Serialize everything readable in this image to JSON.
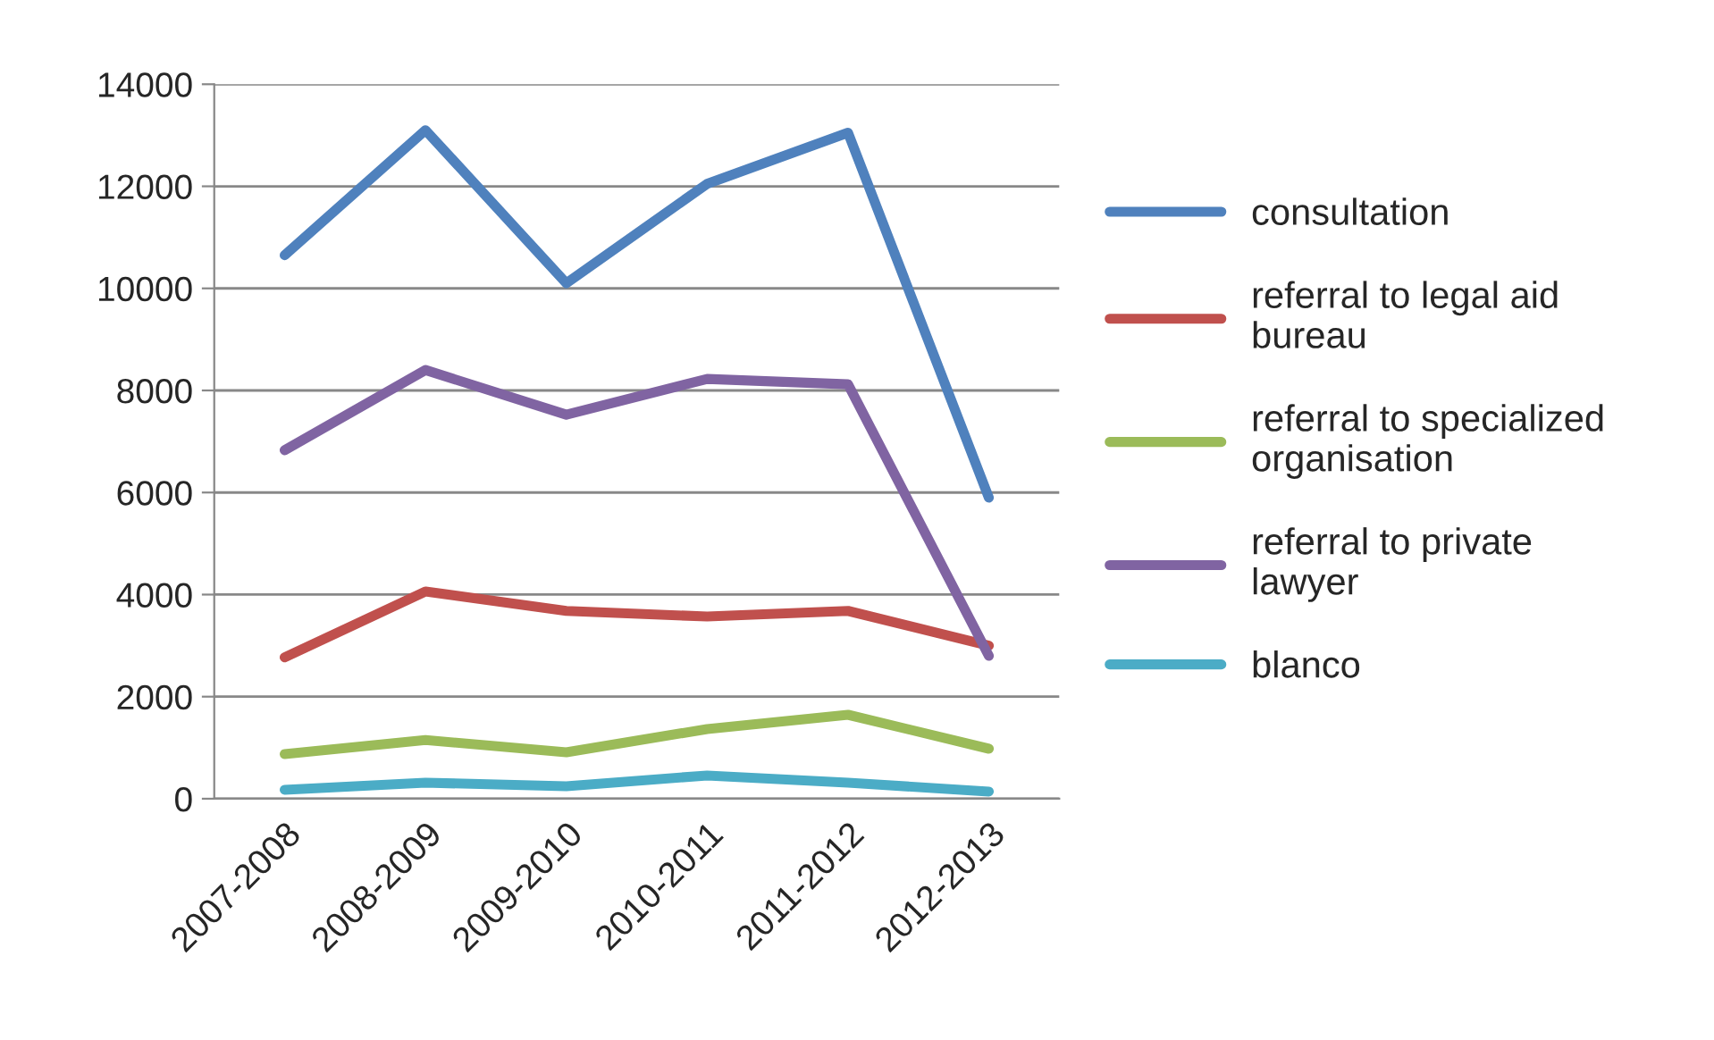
{
  "chart_data": {
    "type": "line",
    "categories": [
      "2007-2008",
      "2008-2009",
      "2009-2010",
      "2010-2011",
      "2011-2012",
      "2012-2013"
    ],
    "series": [
      {
        "name": "consultation",
        "color": "#4f81bd",
        "values": [
          10650,
          13100,
          10100,
          12050,
          13050,
          5900
        ]
      },
      {
        "name": "referral to legal aid\nbureau",
        "color": "#c0504d",
        "values": [
          2770,
          4060,
          3680,
          3570,
          3680,
          3000
        ]
      },
      {
        "name": "referral to specialized\norganisation",
        "color": "#9bbb59",
        "values": [
          875,
          1150,
          910,
          1365,
          1645,
          980
        ]
      },
      {
        "name": "referral to private\nlawyer",
        "color": "#8064a2",
        "values": [
          6830,
          8400,
          7525,
          8225,
          8120,
          2800
        ]
      },
      {
        "name": "blanco",
        "color": "#4bacc6",
        "values": [
          175,
          315,
          245,
          455,
          315,
          140
        ]
      }
    ],
    "ylim": [
      0,
      14000
    ],
    "yticks": [
      0,
      2000,
      4000,
      6000,
      8000,
      10000,
      12000,
      14000
    ],
    "grid": "y",
    "legend": "right",
    "marker": "none",
    "line_style": "solid"
  }
}
